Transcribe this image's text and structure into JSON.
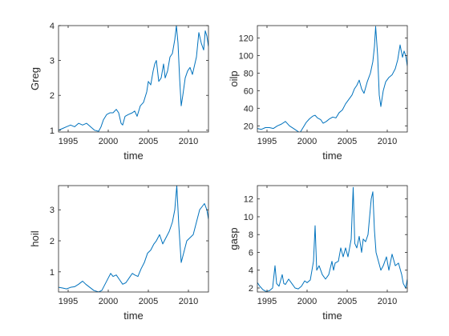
{
  "chart_data": [
    {
      "type": "line",
      "xlabel": "time",
      "ylabel": "Greg",
      "xlim": [
        1993.8,
        2012.5
      ],
      "ylim": [
        0.95,
        4.0
      ],
      "xticks": [
        1995,
        2000,
        2005,
        2010
      ],
      "yticks": [
        1,
        2,
        3,
        4
      ],
      "grid": false,
      "color": "#0072bd",
      "series": [
        {
          "x": [
            1993.8,
            1994.3,
            1994.8,
            1995.3,
            1995.8,
            1996.3,
            1996.8,
            1997.3,
            1997.8,
            1998.3,
            1998.8,
            1999.1,
            1999.4,
            1999.8,
            2000.2,
            2000.6,
            2001.0,
            2001.3,
            2001.6,
            2001.8,
            2002.1,
            2002.5,
            2003.0,
            2003.3,
            2003.6,
            2004.0,
            2004.4,
            2004.8,
            2005.0,
            2005.3,
            2005.6,
            2005.8,
            2006.0,
            2006.3,
            2006.6,
            2006.9,
            2007.1,
            2007.4,
            2007.7,
            2008.0,
            2008.3,
            2008.5,
            2008.7,
            2008.9,
            2009.1,
            2009.3,
            2009.6,
            2009.9,
            2010.2,
            2010.5,
            2010.8,
            2011.0,
            2011.3,
            2011.6,
            2011.9,
            2012.1,
            2012.3,
            2012.5
          ],
          "y": [
            1.0,
            1.05,
            1.1,
            1.15,
            1.1,
            1.2,
            1.15,
            1.2,
            1.1,
            1.0,
            0.97,
            1.1,
            1.3,
            1.45,
            1.5,
            1.5,
            1.6,
            1.5,
            1.2,
            1.15,
            1.4,
            1.45,
            1.5,
            1.55,
            1.4,
            1.7,
            1.8,
            2.1,
            2.4,
            2.3,
            2.7,
            2.9,
            3.0,
            2.4,
            2.5,
            2.9,
            2.5,
            2.7,
            3.1,
            3.2,
            3.6,
            4.0,
            3.5,
            2.5,
            1.7,
            2.0,
            2.5,
            2.7,
            2.8,
            2.6,
            2.9,
            3.1,
            3.8,
            3.5,
            3.3,
            3.85,
            3.7,
            3.4
          ]
        }
      ]
    },
    {
      "type": "line",
      "xlabel": "time",
      "ylabel": "oilp",
      "xlim": [
        1993.8,
        2012.5
      ],
      "ylim": [
        13,
        134
      ],
      "xticks": [
        1995,
        2000,
        2005,
        2010
      ],
      "yticks": [
        20,
        40,
        60,
        80,
        100,
        120
      ],
      "grid": false,
      "color": "#0072bd",
      "series": [
        {
          "x": [
            1993.8,
            1994.3,
            1994.8,
            1995.3,
            1995.8,
            1996.3,
            1996.8,
            1997.3,
            1997.8,
            1998.3,
            1998.8,
            1999.1,
            1999.5,
            1999.9,
            2000.3,
            2000.7,
            2001.0,
            2001.3,
            2001.7,
            2002.0,
            2002.4,
            2002.8,
            2003.2,
            2003.6,
            2004.0,
            2004.4,
            2004.8,
            2005.2,
            2005.6,
            2005.9,
            2006.2,
            2006.5,
            2006.8,
            2007.1,
            2007.5,
            2007.9,
            2008.2,
            2008.4,
            2008.55,
            2008.8,
            2009.0,
            2009.2,
            2009.5,
            2009.8,
            2010.2,
            2010.6,
            2011.0,
            2011.3,
            2011.6,
            2011.9,
            2012.1,
            2012.3,
            2012.5
          ],
          "y": [
            17,
            16,
            18,
            18,
            17,
            20,
            22,
            25,
            20,
            17,
            14,
            12,
            18,
            24,
            28,
            31,
            32,
            29,
            27,
            23,
            25,
            28,
            30,
            29,
            35,
            38,
            45,
            50,
            55,
            62,
            66,
            72,
            62,
            57,
            70,
            80,
            93,
            110,
            133,
            100,
            55,
            42,
            60,
            70,
            75,
            78,
            85,
            95,
            112,
            98,
            105,
            100,
            88
          ]
        }
      ]
    },
    {
      "type": "line",
      "xlabel": "time",
      "ylabel": "hoil",
      "xlim": [
        1993.8,
        2012.5
      ],
      "ylim": [
        0.35,
        3.78
      ],
      "xticks": [
        1995,
        2000,
        2005,
        2010
      ],
      "yticks": [
        1,
        2,
        3
      ],
      "grid": false,
      "color": "#0072bd",
      "series": [
        {
          "x": [
            1993.8,
            1994.3,
            1994.8,
            1995.3,
            1995.8,
            1996.3,
            1996.8,
            1997.2,
            1997.7,
            1998.2,
            1998.8,
            1999.2,
            1999.6,
            2000.0,
            2000.3,
            2000.6,
            2001.0,
            2001.4,
            2001.8,
            2002.2,
            2002.6,
            2003.0,
            2003.3,
            2003.7,
            2004.1,
            2004.5,
            2004.9,
            2005.3,
            2005.7,
            2006.0,
            2006.4,
            2006.8,
            2007.2,
            2007.6,
            2008.0,
            2008.3,
            2008.55,
            2008.8,
            2009.1,
            2009.4,
            2009.8,
            2010.2,
            2010.6,
            2011.0,
            2011.4,
            2011.7,
            2012.0,
            2012.3,
            2012.5
          ],
          "y": [
            0.5,
            0.48,
            0.45,
            0.5,
            0.52,
            0.6,
            0.7,
            0.6,
            0.5,
            0.4,
            0.35,
            0.4,
            0.6,
            0.8,
            0.95,
            0.85,
            0.9,
            0.75,
            0.6,
            0.65,
            0.8,
            0.95,
            0.9,
            0.85,
            1.1,
            1.3,
            1.6,
            1.7,
            1.9,
            2.0,
            2.2,
            1.9,
            2.1,
            2.3,
            2.6,
            3.0,
            3.78,
            2.5,
            1.3,
            1.6,
            2.0,
            2.1,
            2.2,
            2.6,
            3.0,
            3.1,
            3.2,
            3.0,
            2.7
          ]
        }
      ]
    },
    {
      "type": "line",
      "xlabel": "time",
      "ylabel": "gasp",
      "xlim": [
        1993.8,
        2012.5
      ],
      "ylim": [
        1.55,
        13.5
      ],
      "xticks": [
        1995,
        2000,
        2005,
        2010
      ],
      "yticks": [
        2,
        4,
        6,
        8,
        10,
        12
      ],
      "grid": false,
      "color": "#0072bd",
      "series": [
        {
          "x": [
            1993.8,
            1994.1,
            1994.5,
            1994.9,
            1995.3,
            1995.7,
            1996.0,
            1996.2,
            1996.5,
            1996.9,
            1997.1,
            1997.3,
            1997.7,
            1998.1,
            1998.5,
            1998.9,
            1999.3,
            1999.7,
            2000.0,
            2000.4,
            2000.8,
            2001.0,
            2001.2,
            2001.5,
            2001.9,
            2002.3,
            2002.7,
            2003.1,
            2003.3,
            2003.5,
            2003.9,
            2004.2,
            2004.5,
            2004.8,
            2005.1,
            2005.5,
            2005.75,
            2005.95,
            2006.2,
            2006.5,
            2006.8,
            2007.0,
            2007.3,
            2007.6,
            2008.0,
            2008.2,
            2008.4,
            2008.6,
            2008.9,
            2009.2,
            2009.5,
            2009.9,
            2010.2,
            2010.6,
            2011.0,
            2011.4,
            2011.8,
            2012.0,
            2012.3,
            2012.5
          ],
          "y": [
            2.6,
            2.2,
            1.8,
            1.6,
            1.7,
            2.0,
            4.5,
            2.5,
            2.2,
            3.5,
            2.5,
            2.4,
            3.0,
            2.5,
            2.0,
            1.9,
            2.2,
            2.8,
            2.6,
            2.9,
            5.0,
            9.0,
            4.0,
            4.5,
            3.5,
            3.0,
            3.5,
            5.0,
            4.0,
            4.8,
            5.0,
            6.5,
            5.5,
            6.5,
            5.5,
            7.5,
            13.3,
            7.0,
            6.5,
            7.8,
            6.0,
            7.5,
            7.2,
            8.0,
            12.0,
            12.8,
            8.5,
            6.0,
            5.0,
            4.0,
            4.5,
            5.5,
            4.0,
            5.8,
            4.5,
            4.8,
            3.5,
            2.5,
            2.0,
            3.0
          ]
        }
      ]
    }
  ]
}
